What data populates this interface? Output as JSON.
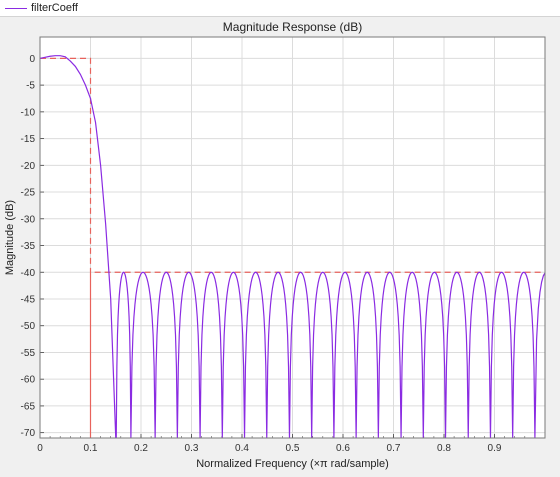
{
  "legend": {
    "label": "filterCoeff"
  },
  "colors": {
    "response": "#8a2be2",
    "mask": "#e8625c",
    "grid": "#dcdcdc",
    "plot_bg": "#ffffff"
  },
  "chart_data": {
    "type": "line",
    "title": "Magnitude Response (dB)",
    "xlabel": "Normalized Frequency (×π rad/sample)",
    "ylabel": "Magnitude (dB)",
    "xlim": [
      0,
      1
    ],
    "ylim": [
      -71,
      4
    ],
    "grid": true,
    "x_ticks": [
      0,
      0.1,
      0.2,
      0.3,
      0.4,
      0.5,
      0.6,
      0.7,
      0.8,
      0.9
    ],
    "x_tick_labels": [
      "0",
      "0.1",
      "0.2",
      "0.3",
      "0.4",
      "0.5",
      "0.6",
      "0.7",
      "0.8",
      "0.9"
    ],
    "y_ticks": [
      0,
      -5,
      -10,
      -15,
      -20,
      -25,
      -30,
      -35,
      -40,
      -45,
      -50,
      -55,
      -60,
      -65,
      -70
    ],
    "y_tick_labels": [
      "0",
      "-5",
      "-10",
      "-15",
      "-20",
      "-25",
      "-30",
      "-35",
      "-40",
      "-45",
      "-50",
      "-55",
      "-60",
      "-65",
      "-70"
    ],
    "series": [
      {
        "name": "filterCoeff",
        "passband_x": [
          0,
          0.01,
          0.02,
          0.03,
          0.04,
          0.05,
          0.06,
          0.07,
          0.08,
          0.09,
          0.1,
          0.11,
          0.12,
          0.13,
          0.14,
          0.15
        ],
        "passband_y": [
          0,
          0.2,
          0.4,
          0.5,
          0.5,
          0.3,
          -0.5,
          -1.5,
          -3,
          -5,
          -7.5,
          -12,
          -20,
          -31,
          -45,
          -71
        ],
        "stopband_nulls": [
          0.151,
          0.18,
          0.228,
          0.272,
          0.317,
          0.361,
          0.405,
          0.449,
          0.494,
          0.538,
          0.582,
          0.626,
          0.67,
          0.715,
          0.759,
          0.803,
          0.848,
          0.892,
          0.936,
          0.98
        ],
        "stopband_peak_db": -40
      },
      {
        "name": "mask",
        "x": [
          0,
          0.1,
          0.1,
          0.1,
          1
        ],
        "y": [
          0,
          0,
          -71,
          -40,
          -40
        ]
      }
    ]
  }
}
